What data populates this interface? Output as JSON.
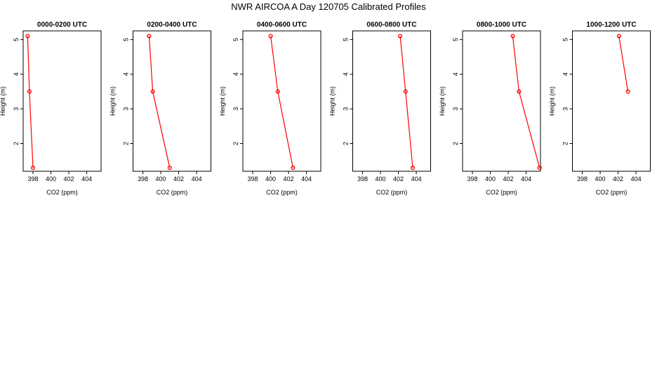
{
  "title": "NWR AIRCOA A  Day 120705  Calibrated Profiles",
  "colors": {
    "series": "#ff0000",
    "axis": "#000000",
    "background": "#ffffff"
  },
  "chart_data": [
    {
      "type": "line",
      "title": "0000-0200 UTC",
      "xlabel": "CO2 (ppm)",
      "ylabel": "Height (m)",
      "xlim": [
        396.9,
        405.6
      ],
      "ylim": [
        1.2,
        5.25
      ],
      "xticks": [
        "398",
        "400",
        "402",
        "404"
      ],
      "yticks": [
        "2",
        "3",
        "4",
        "5"
      ],
      "points": [
        {
          "x": 397.4,
          "y": 5.1
        },
        {
          "x": 397.6,
          "y": 3.5
        },
        {
          "x": 398.0,
          "y": 1.3
        }
      ]
    },
    {
      "type": "line",
      "title": "0200-0400 UTC",
      "xlabel": "CO2 (ppm)",
      "ylabel": "Height (m)",
      "xlim": [
        396.9,
        405.6
      ],
      "ylim": [
        1.2,
        5.25
      ],
      "xticks": [
        "398",
        "400",
        "402",
        "404"
      ],
      "yticks": [
        "2",
        "3",
        "4",
        "5"
      ],
      "points": [
        {
          "x": 398.7,
          "y": 5.1
        },
        {
          "x": 399.1,
          "y": 3.5
        },
        {
          "x": 401.0,
          "y": 1.3
        }
      ]
    },
    {
      "type": "line",
      "title": "0400-0600 UTC",
      "xlabel": "CO2 (ppm)",
      "ylabel": "Height (m)",
      "xlim": [
        396.9,
        405.6
      ],
      "ylim": [
        1.2,
        5.25
      ],
      "xticks": [
        "398",
        "400",
        "402",
        "404"
      ],
      "yticks": [
        "2",
        "3",
        "4",
        "5"
      ],
      "points": [
        {
          "x": 400.0,
          "y": 5.1
        },
        {
          "x": 400.8,
          "y": 3.5
        },
        {
          "x": 402.5,
          "y": 1.3
        }
      ]
    },
    {
      "type": "line",
      "title": "0600-0800 UTC",
      "xlabel": "CO2 (ppm)",
      "ylabel": "Height (m)",
      "xlim": [
        396.9,
        405.6
      ],
      "ylim": [
        1.2,
        5.25
      ],
      "xticks": [
        "398",
        "400",
        "402",
        "404"
      ],
      "yticks": [
        "2",
        "3",
        "4",
        "5"
      ],
      "points": [
        {
          "x": 402.2,
          "y": 5.1
        },
        {
          "x": 402.8,
          "y": 3.5
        },
        {
          "x": 403.6,
          "y": 1.3
        }
      ]
    },
    {
      "type": "line",
      "title": "0800-1000 UTC",
      "xlabel": "CO2 (ppm)",
      "ylabel": "Height (m)",
      "xlim": [
        396.9,
        405.6
      ],
      "ylim": [
        1.2,
        5.25
      ],
      "xticks": [
        "398",
        "400",
        "402",
        "404"
      ],
      "yticks": [
        "2",
        "3",
        "4",
        "5"
      ],
      "points": [
        {
          "x": 402.5,
          "y": 5.1
        },
        {
          "x": 403.2,
          "y": 3.5
        },
        {
          "x": 405.5,
          "y": 1.3
        }
      ]
    },
    {
      "type": "line",
      "title": "1000-1200 UTC",
      "xlabel": "CO2 (ppm)",
      "ylabel": "Height (m)",
      "xlim": [
        396.9,
        405.6
      ],
      "ylim": [
        1.2,
        5.25
      ],
      "xticks": [
        "398",
        "400",
        "402",
        "404"
      ],
      "yticks": [
        "2",
        "3",
        "4",
        "5"
      ],
      "points": [
        {
          "x": 402.1,
          "y": 5.1
        },
        {
          "x": 403.1,
          "y": 3.5
        }
      ]
    }
  ]
}
